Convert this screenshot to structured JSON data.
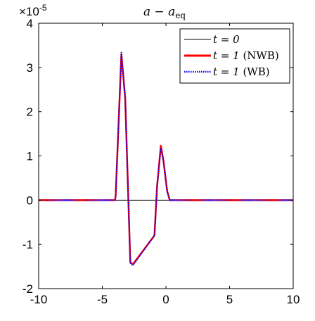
{
  "chart_data": {
    "type": "line",
    "title": "a − a",
    "title_sub": "eq",
    "xlabel": "",
    "ylabel": "",
    "xlim": [
      -10,
      10
    ],
    "ylim": [
      -2,
      4
    ],
    "y_scale_factor_text": "×10",
    "y_scale_factor_exp": "-5",
    "xticks": [
      -10,
      -5,
      0,
      5,
      10
    ],
    "yticks": [
      -2,
      -1,
      0,
      1,
      2,
      3,
      4
    ],
    "xtick_labels": [
      "-10",
      "-5",
      "0",
      "5",
      "10"
    ],
    "ytick_labels": [
      "-2",
      "-1",
      "0",
      "1",
      "2",
      "3",
      "4"
    ],
    "grid": false,
    "legend_position": "top-right",
    "series": [
      {
        "name": "t = 0",
        "color": "#000000",
        "style": "solid",
        "x": [
          -10,
          10
        ],
        "y": [
          0,
          0
        ]
      },
      {
        "name": "t = 1 (NWB)",
        "color": "#ff0000",
        "style": "solid",
        "x": [
          -10,
          -4.0,
          -3.95,
          -3.5,
          -3.2,
          -2.8,
          -2.6,
          -0.9,
          -0.7,
          -0.4,
          -0.2,
          0.1,
          0.3,
          10
        ],
        "y": [
          0,
          0,
          0.1,
          3.3,
          2.3,
          -1.4,
          -1.45,
          -0.8,
          0.3,
          1.23,
          0.9,
          0.2,
          0,
          0
        ]
      },
      {
        "name": "t = 1 (WB)",
        "color": "#0000ff",
        "style": "dotted",
        "x": [
          -10,
          -4.0,
          -3.95,
          -3.5,
          -3.2,
          -2.8,
          -2.6,
          -0.9,
          -0.7,
          -0.4,
          -0.2,
          0.1,
          0.3,
          10
        ],
        "y": [
          0,
          0,
          0.1,
          3.34,
          2.3,
          -1.42,
          -1.48,
          -0.79,
          0.3,
          1.18,
          0.9,
          0.2,
          0,
          0
        ]
      }
    ],
    "legend_labels": {
      "s0_main": "t = 0",
      "s1_main": "t = 1",
      "s1_suffix": " (NWB)",
      "s2_main": "t = 1",
      "s2_suffix": " (WB)"
    }
  }
}
